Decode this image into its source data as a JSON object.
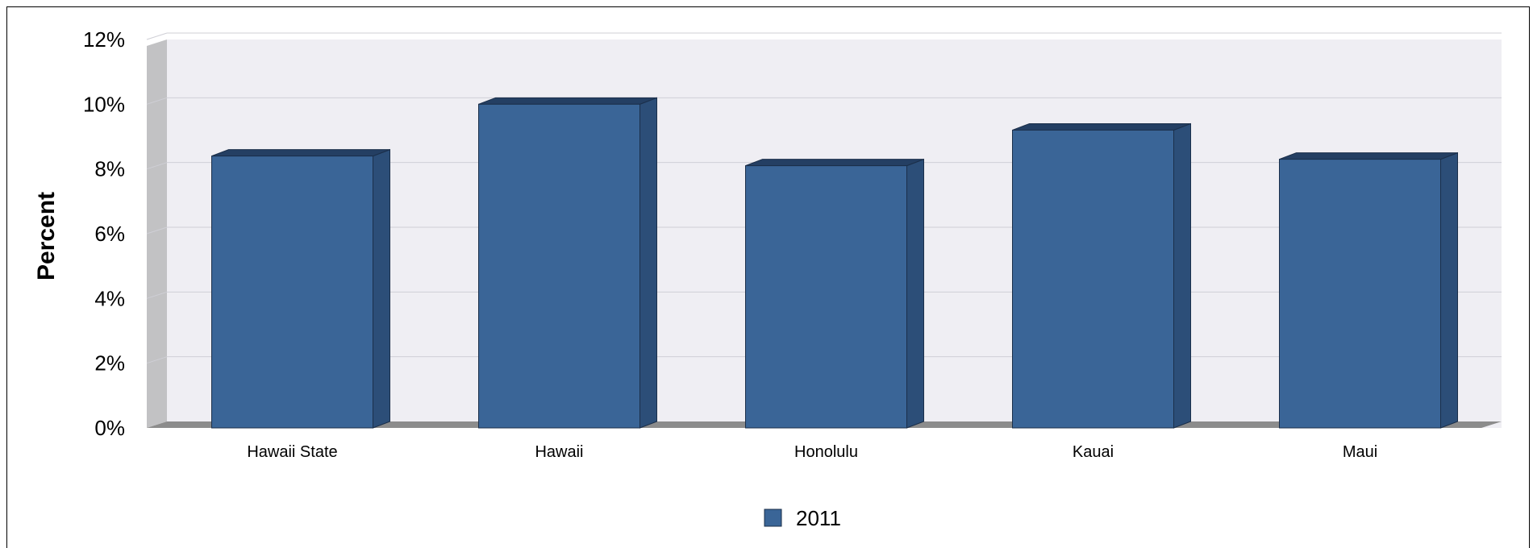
{
  "chart_data": {
    "type": "bar",
    "ylabel": "Percent",
    "xlabel": "",
    "categories": [
      "Hawaii State",
      "Hawaii",
      "Honolulu",
      "Kauai",
      "Maui"
    ],
    "series": [
      {
        "name": "2011",
        "values": [
          8.4,
          10.0,
          8.1,
          9.2,
          8.3
        ]
      }
    ],
    "ylim": [
      0,
      12
    ],
    "yticks": [
      "0%",
      "2%",
      "4%",
      "6%",
      "8%",
      "10%",
      "12%"
    ],
    "ytick_values": [
      0,
      2,
      4,
      6,
      8,
      10,
      12
    ],
    "grid": true,
    "legend": "bottom-center",
    "colors": {
      "bar": "#3a6597",
      "bar_side": "#2c4e78",
      "bar_top": "#243f63",
      "wall": "#efeef3",
      "side_wall": "#c2c2c4",
      "floor": "#8c8c8c",
      "grid": "#cfcfd6"
    }
  }
}
